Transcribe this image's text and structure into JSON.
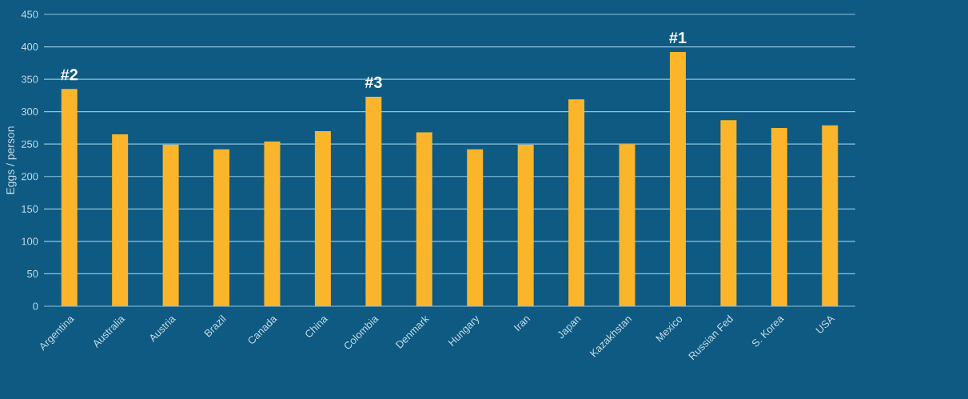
{
  "chart_data": {
    "type": "bar",
    "ylabel": "Eggs / person",
    "categories": [
      "Argentina",
      "Australia",
      "Austria",
      "Brazil",
      "Canada",
      "China",
      "Colombia",
      "Denmark",
      "Hungary",
      "Iran",
      "Japan",
      "Kazakhstan",
      "Mexico",
      "Russian Fed",
      "S. Korea",
      "USA"
    ],
    "values": [
      335,
      265,
      249,
      242,
      254,
      270,
      323,
      268,
      242,
      249,
      319,
      250,
      392,
      287,
      275,
      279
    ],
    "color": "#fbb52a",
    "ylim": [
      0,
      450
    ],
    "yticks": [
      0,
      50,
      100,
      150,
      200,
      250,
      300,
      350,
      400,
      450
    ],
    "grid": "y",
    "annotations": [
      {
        "text": "#2",
        "x": "Argentina",
        "y": 335
      },
      {
        "text": "#3",
        "x": "Colombia",
        "y": 323
      },
      {
        "text": "#1",
        "x": "Mexico",
        "y": 392
      }
    ]
  }
}
